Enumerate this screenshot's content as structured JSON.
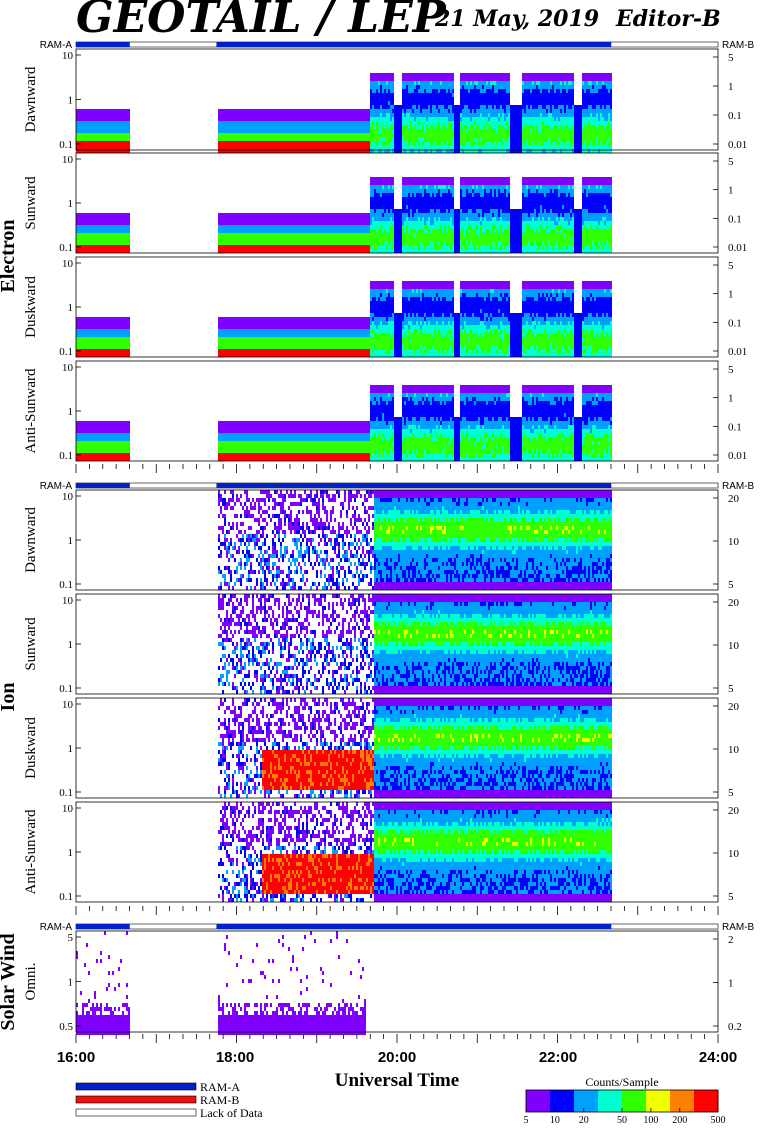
{
  "header": {
    "title": "GEOTAIL / LEP",
    "date": "21 May, 2019",
    "editor": "Editor-B"
  },
  "chart_data": {
    "type": "heatmap",
    "x_axis": {
      "label": "Universal Time",
      "range": [
        "16:00",
        "24:00"
      ],
      "range_hours": [
        16,
        24
      ],
      "ticks": [
        {
          "hour": 16,
          "label": "16:00"
        },
        {
          "hour": 18,
          "label": "18:00"
        },
        {
          "hour": 20,
          "label": "20:00"
        },
        {
          "hour": 22,
          "label": "22:00"
        },
        {
          "hour": 24,
          "label": "24:00"
        }
      ]
    },
    "data_coverage": {
      "segments_hours": [
        [
          16.0,
          16.67
        ],
        [
          17.75,
          22.67
        ]
      ],
      "gap_hours": [
        [
          16.67,
          17.75
        ],
        [
          22.67,
          24.0
        ]
      ]
    },
    "colorbar": {
      "label": "Counts/Sample",
      "ticks": [
        "5",
        "10",
        "20",
        "50",
        "100",
        "200",
        "500"
      ],
      "range": [
        5,
        500
      ],
      "scale": "log",
      "colors": [
        "#7f00ff",
        "#0000ff",
        "#00a0ff",
        "#00ffd0",
        "#30ff00",
        "#f0ff00",
        "#ff8000",
        "#ff0000"
      ]
    },
    "legend": [
      {
        "label": "RAM-A",
        "color": "#0022cc"
      },
      {
        "label": "RAM-B",
        "color": "#ee1111"
      },
      {
        "label": "Lack of Data",
        "color": "#ffffff"
      }
    ],
    "groups": [
      {
        "species": "Electron",
        "ram_left": "RAM-A",
        "ram_right": "RAM-B",
        "panels": [
          {
            "label": "Dawnward",
            "left_ticks": [
              "10",
              "1",
              "0.1"
            ],
            "right_ticks": [
              "5",
              "1",
              "0.1",
              "0.01"
            ]
          },
          {
            "label": "Sunward",
            "left_ticks": [
              "10",
              "1",
              "0.1"
            ],
            "right_ticks": [
              "5",
              "1",
              "0.1",
              "0.01"
            ]
          },
          {
            "label": "Duskward",
            "left_ticks": [
              "10",
              "1",
              "0.1"
            ],
            "right_ticks": [
              "5",
              "1",
              "0.1",
              "0.01"
            ]
          },
          {
            "label": "Anti-Sunward",
            "left_ticks": [
              "10",
              "1",
              "0.1"
            ],
            "right_ticks": [
              "5",
              "1",
              "0.1",
              "0.01"
            ]
          }
        ]
      },
      {
        "species": "Ion",
        "ram_left": "RAM-A",
        "ram_right": "RAM-B",
        "panels": [
          {
            "label": "Dawnward",
            "left_ticks": [
              "10",
              "1",
              "0.1"
            ],
            "right_ticks": [
              "20",
              "10",
              "5"
            ]
          },
          {
            "label": "Sunward",
            "left_ticks": [
              "10",
              "1",
              "0.1"
            ],
            "right_ticks": [
              "20",
              "10",
              "5"
            ]
          },
          {
            "label": "Duskward",
            "left_ticks": [
              "10",
              "1",
              "0.1"
            ],
            "right_ticks": [
              "20",
              "10",
              "5"
            ]
          },
          {
            "label": "Anti-Sunward",
            "left_ticks": [
              "10",
              "1",
              "0.1"
            ],
            "right_ticks": [
              "20",
              "10",
              "5"
            ]
          }
        ]
      },
      {
        "species": "Solar Wind",
        "ram_left": "RAM-A",
        "ram_right": "RAM-B",
        "panels": [
          {
            "label": "Omni.",
            "left_ticks": [
              "5",
              "1",
              "0.5"
            ],
            "right_ticks": [
              "2",
              "1",
              "0.2"
            ]
          }
        ]
      }
    ]
  }
}
